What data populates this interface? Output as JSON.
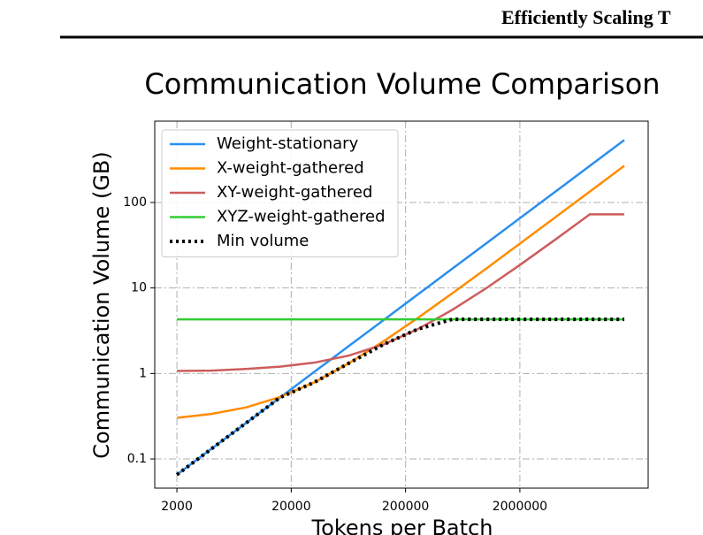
{
  "page_header": "Efficiently Scaling T",
  "chart_data": {
    "type": "line",
    "title": "Communication Volume Comparison",
    "x_label": "Tokens per Batch",
    "y_label": "Communication Volume (GB)",
    "x": [
      2000,
      4000,
      8000,
      16000,
      32000,
      64000,
      128000,
      256000,
      512000,
      1024000,
      2048000,
      4096000,
      8192000,
      16384000
    ],
    "series": [
      {
        "name": "Weight-stationary",
        "color": "#2b8ff0",
        "linestyle": "solid",
        "values": [
          0.0655,
          0.131,
          0.262,
          0.524,
          1.05,
          2.1,
          4.19,
          8.38,
          16.8,
          33.5,
          67,
          134,
          268,
          537
        ]
      },
      {
        "name": "X-weight-gathered",
        "color": "#ff8c00",
        "linestyle": "solid",
        "values": [
          0.303,
          0.336,
          0.4,
          0.53,
          0.79,
          1.32,
          2.37,
          4.46,
          8.65,
          17,
          33.8,
          67.3,
          134,
          268
        ]
      },
      {
        "name": "XY-weight-gathered",
        "color": "#cd5c5c",
        "linestyle": "solid",
        "values": [
          1.07,
          1.08,
          1.13,
          1.2,
          1.34,
          1.62,
          2.18,
          3.3,
          5.54,
          10,
          19,
          36.9,
          72.7,
          72.7
        ]
      },
      {
        "name": "XYZ-weight-gathered",
        "color": "#32cd32",
        "linestyle": "solid",
        "values": [
          4.3,
          4.3,
          4.3,
          4.3,
          4.3,
          4.3,
          4.3,
          4.3,
          4.3,
          4.3,
          4.3,
          4.3,
          4.3,
          4.3
        ]
      },
      {
        "name": "Min volume",
        "color": "#000000",
        "linestyle": "dotted",
        "values": [
          0.0655,
          0.131,
          0.262,
          0.524,
          0.79,
          1.32,
          2.18,
          3.3,
          4.3,
          4.3,
          4.3,
          4.3,
          4.3,
          4.3
        ]
      }
    ],
    "xscale": "log",
    "yscale": "log",
    "xlim": [
      1280,
      26500000
    ],
    "ylim": [
      0.0456,
      893
    ],
    "xticks": [
      2000,
      20000,
      200000,
      2000000
    ],
    "yticks": [
      0.1,
      1,
      10,
      100
    ],
    "grid": true,
    "legend": "upper left"
  }
}
